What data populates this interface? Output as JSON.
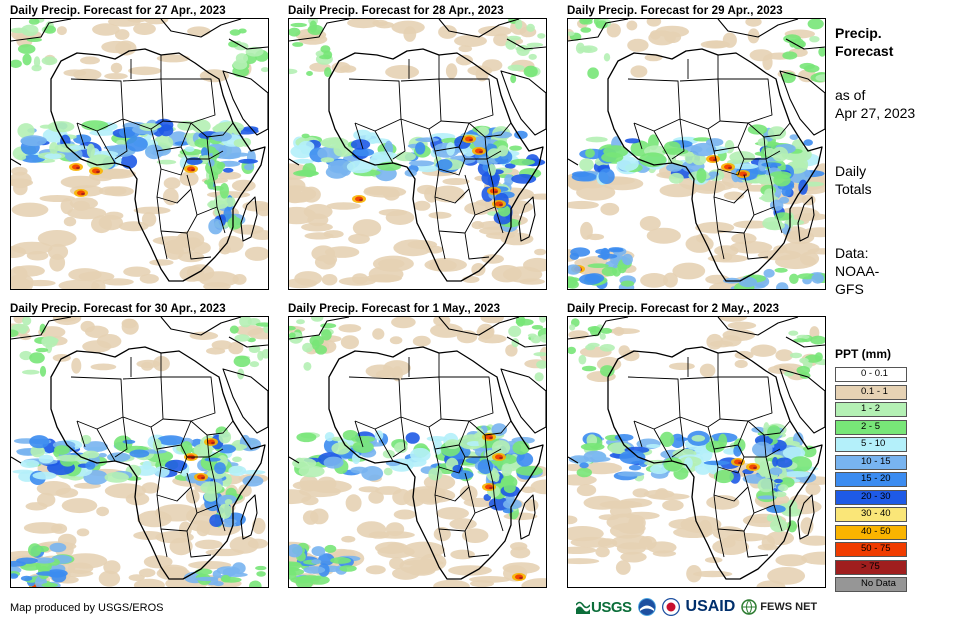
{
  "panels": [
    {
      "title": "Daily Precip. Forecast for 27 Apr., 2023",
      "variant": 0
    },
    {
      "title": "Daily Precip. Forecast for 28 Apr., 2023",
      "variant": 1
    },
    {
      "title": "Daily Precip. Forecast for 29 Apr., 2023",
      "variant": 2
    },
    {
      "title": "Daily Precip. Forecast for 30 Apr., 2023",
      "variant": 3
    },
    {
      "title": "Daily Precip. Forecast for 1 May., 2023",
      "variant": 4
    },
    {
      "title": "Daily Precip. Forecast for 2 May., 2023",
      "variant": 5
    }
  ],
  "sidebar": {
    "title_line1": "Precip.",
    "title_line2": "Forecast",
    "asof_line1": "as of",
    "asof_line2": "Apr 27, 2023",
    "totals_line1": "Daily",
    "totals_line2": "Totals",
    "source_line1": "Data:",
    "source_line2": "NOAA-",
    "source_line3": "GFS"
  },
  "legend": {
    "title": "PPT (mm)",
    "items": [
      {
        "label": "0 - 0.1",
        "color": "#ffffff"
      },
      {
        "label": "0.1 - 1",
        "color": "#e6d2b4"
      },
      {
        "label": "1 - 2",
        "color": "#b4f0b4"
      },
      {
        "label": "2 - 5",
        "color": "#78e678"
      },
      {
        "label": "5 - 10",
        "color": "#b4f0fa"
      },
      {
        "label": "10 - 15",
        "color": "#78b4f0"
      },
      {
        "label": "15 - 20",
        "color": "#3c8cf0"
      },
      {
        "label": "20 - 30",
        "color": "#1e5ae6"
      },
      {
        "label": "30 - 40",
        "color": "#fae678"
      },
      {
        "label": "40 - 50",
        "color": "#fab400"
      },
      {
        "label": "50 - 75",
        "color": "#f03c00"
      },
      {
        "label": "> 75",
        "color": "#a01e1e"
      },
      {
        "label": "No Data",
        "color": "#969696"
      }
    ]
  },
  "footer": {
    "credit": "Map produced by USGS/EROS",
    "logo_usgs": "USGS",
    "logo_usaid": "USAID",
    "logo_fews": "FEWS NET"
  }
}
